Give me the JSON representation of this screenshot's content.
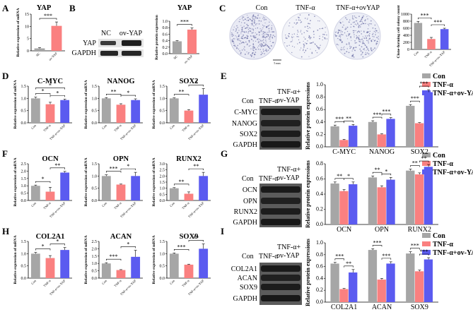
{
  "colors": {
    "con": "#a6a6a6",
    "tnf": "#fa8080",
    "ov": "#5b5bf0",
    "ov_single": "#fa8080",
    "nc": "#a6a6a6",
    "blot": "#2b2b2b",
    "dish_bg": "#f2f3f8"
  },
  "panels": {
    "A": "A",
    "B": "B",
    "C": "C",
    "D": "D",
    "E": "E",
    "F": "F",
    "G": "G",
    "H": "H",
    "I": "I"
  },
  "legend": {
    "con": "Con",
    "tnf": "TNF-α",
    "ov": "TNF-α+ov-YAP"
  },
  "panel_B": {
    "lane_labels": [
      "NC",
      "ov-YAP"
    ],
    "rows": [
      "YAP",
      "GAPDH"
    ]
  },
  "panel_C": {
    "dish_labels": [
      "Con",
      "TNF-α",
      "TNF-α+ovYAP"
    ],
    "scale_label": "5 mm"
  },
  "blot_E": {
    "lane_labels": [
      "Con",
      "TNF-α",
      "TNF-α+",
      "ov-YAP"
    ],
    "rows": [
      "C-MYC",
      "NANOG",
      "SOX2",
      "GAPDH"
    ]
  },
  "blot_G": {
    "lane_labels": [
      "Con",
      "TNF-α",
      "TNF-α+",
      "ov-YAP"
    ],
    "rows": [
      "OCN",
      "OPN",
      "RUNX2",
      "GAPDH"
    ]
  },
  "blot_I": {
    "lane_labels": [
      "Con",
      "TNF-α",
      "TNF-α+",
      "ov-YAP"
    ],
    "rows": [
      "COL2A1",
      "ACAN",
      "SOX9",
      "GAPDH"
    ]
  },
  "chart_data": [
    {
      "id": "A",
      "type": "bar",
      "title": "YAP",
      "ylabel": "Relative expression of mRNA",
      "categories": [
        "NC",
        "ov-YAP"
      ],
      "values": [
        1.0,
        10.2
      ],
      "errors": [
        0.3,
        1.6
      ],
      "ylim": [
        0,
        15
      ],
      "yticks": [
        0,
        5,
        10,
        15
      ],
      "sig": [
        {
          "a": 0,
          "b": 1,
          "label": "***"
        }
      ]
    },
    {
      "id": "B",
      "type": "bar",
      "title": "YAP",
      "ylabel": "Relative protein expression",
      "categories": [
        "NC",
        "ov-YAP"
      ],
      "values": [
        0.38,
        0.74
      ],
      "errors": [
        0.02,
        0.05
      ],
      "ylim": [
        0,
        1.0
      ],
      "yticks": [
        0.0,
        0.2,
        0.4,
        0.6,
        0.8,
        1.0
      ],
      "sig": [
        {
          "a": 0,
          "b": 1,
          "label": "***"
        }
      ]
    },
    {
      "id": "C",
      "type": "bar",
      "title": "",
      "ylabel": "Clone-forming cell colony count",
      "categories": [
        "Con",
        "TNF-α",
        "TNF-α+ov-YAP"
      ],
      "values": [
        750,
        295,
        575
      ],
      "errors": [
        45,
        45,
        25
      ],
      "ylim": [
        0,
        1000
      ],
      "yticks": [
        0,
        200,
        400,
        600,
        800,
        1000
      ],
      "sig": [
        {
          "a": 0,
          "b": 1,
          "label": "***"
        },
        {
          "a": 1,
          "b": 2,
          "label": "***"
        }
      ]
    },
    {
      "id": "D1",
      "type": "bar",
      "title": "C-MYC",
      "ylabel": "Relative expression of mRNA",
      "categories": [
        "Con",
        "TNF-α",
        "TNF-α+ov-YAP"
      ],
      "values": [
        1.0,
        0.76,
        0.93
      ],
      "errors": [
        0.05,
        0.08,
        0.04
      ],
      "ylim": [
        0,
        1.5
      ],
      "yticks": [
        0.0,
        0.5,
        1.0,
        1.5
      ],
      "sig": [
        {
          "a": 0,
          "b": 1,
          "label": "*"
        },
        {
          "a": 1,
          "b": 2,
          "label": "*"
        },
        {
          "a": 0,
          "b": 2,
          "label": "*"
        }
      ]
    },
    {
      "id": "D2",
      "type": "bar",
      "title": "NANOG",
      "ylabel": "Relative expression of mRNA",
      "categories": [
        "Con",
        "TNF-α",
        "TNF-α+ov-YAP"
      ],
      "values": [
        1.0,
        0.74,
        0.93
      ],
      "errors": [
        0.03,
        0.04,
        0.05
      ],
      "ylim": [
        0,
        1.5
      ],
      "yticks": [
        0.0,
        0.5,
        1.0,
        1.5
      ],
      "sig": [
        {
          "a": 0,
          "b": 1,
          "label": "**"
        },
        {
          "a": 1,
          "b": 2,
          "label": "*"
        }
      ]
    },
    {
      "id": "D3",
      "type": "bar",
      "title": "SOX2",
      "ylabel": "Relative expression of mRNA",
      "categories": [
        "Con",
        "TNF-α",
        "TNF-α+ov-YAP"
      ],
      "values": [
        1.0,
        0.5,
        1.15
      ],
      "errors": [
        0.02,
        0.04,
        0.25
      ],
      "ylim": [
        0,
        1.5
      ],
      "yticks": [
        0.0,
        0.5,
        1.0,
        1.5
      ],
      "sig": [
        {
          "a": 0,
          "b": 1,
          "label": "**"
        },
        {
          "a": 1,
          "b": 2,
          "label": "*"
        }
      ]
    },
    {
      "id": "E",
      "type": "bar",
      "title": "",
      "ylabel": "Relative protein expressions",
      "categories": [
        "C-MYC",
        "NANOG",
        "SOX2"
      ],
      "series": [
        {
          "name": "Con",
          "values": [
            0.33,
            0.4,
            0.66
          ],
          "errors": [
            0.02,
            0.02,
            0.02
          ]
        },
        {
          "name": "TNF-α",
          "values": [
            0.11,
            0.2,
            0.38
          ],
          "errors": [
            0.01,
            0.01,
            0.01
          ]
        },
        {
          "name": "TNF-α+ov-YAP",
          "values": [
            0.34,
            0.45,
            0.88
          ],
          "errors": [
            0.02,
            0.02,
            0.04
          ]
        }
      ],
      "ylim": [
        0,
        1.0
      ],
      "yticks": [
        0.0,
        0.2,
        0.4,
        0.6,
        0.8,
        1.0
      ],
      "sig": [
        {
          "g": 0,
          "a": 0,
          "b": 1,
          "label": "***"
        },
        {
          "g": 0,
          "a": 1,
          "b": 2,
          "label": "**"
        },
        {
          "g": 1,
          "a": 0,
          "b": 1,
          "label": "***"
        },
        {
          "g": 1,
          "a": 1,
          "b": 2,
          "label": "***"
        },
        {
          "g": 2,
          "a": 0,
          "b": 1,
          "label": "***"
        },
        {
          "g": 2,
          "a": 1,
          "b": 2,
          "label": "***"
        }
      ]
    },
    {
      "id": "F1",
      "type": "bar",
      "title": "OCN",
      "ylabel": "Relative expression of mRNA",
      "categories": [
        "Con",
        "TNF-α",
        "TNF-α+ov-YAP"
      ],
      "values": [
        1.0,
        0.6,
        1.9
      ],
      "errors": [
        0.05,
        0.3,
        0.08
      ],
      "ylim": [
        0,
        2.5
      ],
      "yticks": [
        0.0,
        0.5,
        1.0,
        1.5,
        2.0,
        2.5
      ],
      "sig": [
        {
          "a": 0,
          "b": 1,
          "label": "*"
        },
        {
          "a": 1,
          "b": 2,
          "label": "**"
        }
      ]
    },
    {
      "id": "F2",
      "type": "bar",
      "title": "OPN",
      "ylabel": "Relative expression of mRNA",
      "categories": [
        "Con",
        "TNF-α",
        "TNF-α+ov-YAP"
      ],
      "values": [
        1.0,
        0.65,
        1.0
      ],
      "errors": [
        0.05,
        0.02,
        0.15
      ],
      "ylim": [
        0,
        1.5
      ],
      "yticks": [
        0.0,
        0.5,
        1.0,
        1.5
      ],
      "sig": [
        {
          "a": 0,
          "b": 1,
          "label": "***"
        },
        {
          "a": 1,
          "b": 2,
          "label": "*"
        }
      ]
    },
    {
      "id": "F3",
      "type": "bar",
      "title": "RUNX2",
      "ylabel": "Relative expression of mRNA",
      "categories": [
        "Con",
        "TNF-α",
        "TNF-α+ov-YAP"
      ],
      "values": [
        1.0,
        0.55,
        2.0
      ],
      "errors": [
        0.05,
        0.15,
        0.3
      ],
      "ylim": [
        0,
        3.0
      ],
      "yticks": [
        0.0,
        0.5,
        1.0,
        1.5,
        2.0,
        2.5,
        3.0
      ],
      "sig": [
        {
          "a": 0,
          "b": 1,
          "label": "**"
        },
        {
          "a": 1,
          "b": 2,
          "label": "**"
        }
      ]
    },
    {
      "id": "G",
      "type": "bar",
      "title": "",
      "ylabel": "Relative protein expressions",
      "categories": [
        "OCN",
        "OPN",
        "RUNX2"
      ],
      "series": [
        {
          "name": "Con",
          "values": [
            0.54,
            0.62,
            0.71
          ],
          "errors": [
            0.02,
            0.02,
            0.02
          ]
        },
        {
          "name": "TNF-α",
          "values": [
            0.44,
            0.49,
            0.66
          ],
          "errors": [
            0.02,
            0.02,
            0.02
          ]
        },
        {
          "name": "TNF-α+ov-YAP",
          "values": [
            0.53,
            0.59,
            0.76
          ],
          "errors": [
            0.03,
            0.03,
            0.03
          ]
        }
      ],
      "ylim": [
        0,
        0.8
      ],
      "yticks": [
        0.0,
        0.2,
        0.4,
        0.6,
        0.8
      ],
      "sig": [
        {
          "g": 0,
          "a": 0,
          "b": 1,
          "label": "**"
        },
        {
          "g": 0,
          "a": 1,
          "b": 2,
          "label": "*"
        },
        {
          "g": 1,
          "a": 0,
          "b": 1,
          "label": "**"
        },
        {
          "g": 1,
          "a": 1,
          "b": 2,
          "label": "*"
        },
        {
          "g": 2,
          "a": 0,
          "b": 1,
          "label": "**"
        },
        {
          "g": 2,
          "a": 1,
          "b": 2,
          "label": "**"
        }
      ]
    },
    {
      "id": "H1",
      "type": "bar",
      "title": "COL2A1",
      "ylabel": "Relative expression of mRNA",
      "categories": [
        "Con",
        "TNF-α",
        "TNF-α+ov-YAP"
      ],
      "values": [
        1.0,
        0.82,
        1.15
      ],
      "errors": [
        0.05,
        0.1,
        0.1
      ],
      "ylim": [
        0,
        1.5
      ],
      "yticks": [
        0.0,
        0.5,
        1.0,
        1.5
      ],
      "sig": [
        {
          "a": 0,
          "b": 1,
          "label": "*"
        },
        {
          "a": 1,
          "b": 2,
          "label": "*"
        }
      ]
    },
    {
      "id": "H2",
      "type": "bar",
      "title": "ACAN",
      "ylabel": "Relative expression of mRNA",
      "categories": [
        "Con",
        "TNF-α",
        "TNF-α+ov-YAP"
      ],
      "values": [
        1.0,
        0.55,
        1.45
      ],
      "errors": [
        0.05,
        0.03,
        0.45
      ],
      "ylim": [
        0,
        2.5
      ],
      "yticks": [
        0.0,
        0.5,
        1.0,
        1.5,
        2.0,
        2.5
      ],
      "sig": [
        {
          "a": 0,
          "b": 1,
          "label": "***"
        },
        {
          "a": 1,
          "b": 2,
          "label": "*"
        }
      ]
    },
    {
      "id": "H3",
      "type": "bar",
      "title": "SOX9",
      "ylabel": "Relative expression of mRNA",
      "categories": [
        "Con",
        "TNF-α",
        "TNF-α+ov-YAP"
      ],
      "values": [
        1.0,
        0.55,
        1.2
      ],
      "errors": [
        0.03,
        0.02,
        0.2
      ],
      "ylim": [
        0,
        1.5
      ],
      "yticks": [
        0.0,
        0.5,
        1.0,
        1.5
      ],
      "sig": [
        {
          "a": 0,
          "b": 1,
          "label": "***"
        },
        {
          "a": 1,
          "b": 2,
          "label": "**"
        }
      ]
    },
    {
      "id": "I",
      "type": "bar",
      "title": "",
      "ylabel": "Relative protein expressions",
      "categories": [
        "COL2A1",
        "ACAN",
        "SOX9"
      ],
      "series": [
        {
          "name": "Con",
          "values": [
            0.65,
            0.88,
            0.82
          ],
          "errors": [
            0.02,
            0.02,
            0.03
          ]
        },
        {
          "name": "TNF-α",
          "values": [
            0.22,
            0.38,
            0.52
          ],
          "errors": [
            0.01,
            0.02,
            0.02
          ]
        },
        {
          "name": "TNF-α+ov-YAP",
          "values": [
            0.5,
            0.65,
            0.72
          ],
          "errors": [
            0.05,
            0.03,
            0.03
          ]
        }
      ],
      "ylim": [
        0,
        1.0
      ],
      "yticks": [
        0.0,
        0.2,
        0.4,
        0.6,
        0.8,
        1.0
      ],
      "sig": [
        {
          "g": 0,
          "a": 0,
          "b": 1,
          "label": "***"
        },
        {
          "g": 0,
          "a": 1,
          "b": 2,
          "label": "**"
        },
        {
          "g": 1,
          "a": 0,
          "b": 1,
          "label": "***"
        },
        {
          "g": 1,
          "a": 1,
          "b": 2,
          "label": "***"
        },
        {
          "g": 2,
          "a": 0,
          "b": 1,
          "label": "***"
        },
        {
          "g": 2,
          "a": 1,
          "b": 2,
          "label": "***"
        }
      ]
    }
  ]
}
